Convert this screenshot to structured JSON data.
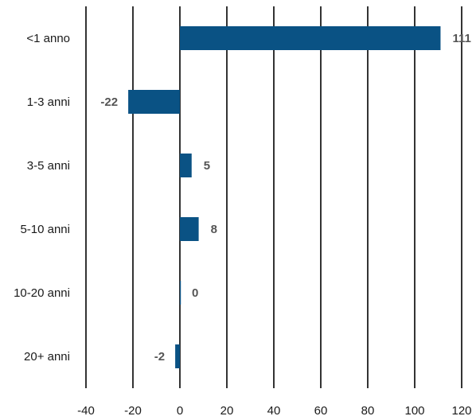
{
  "chart_data": {
    "type": "bar",
    "orientation": "horizontal",
    "title": "",
    "xlabel": "",
    "ylabel": "",
    "categories": [
      "<1 anno",
      "1-3 anni",
      "3-5 anni",
      "5-10 anni",
      "10-20 anni",
      "20+ anni"
    ],
    "values": [
      111,
      -22,
      5,
      8,
      0,
      -2
    ],
    "data_labels": [
      "111",
      "-22",
      "5",
      "8",
      "0",
      "-2"
    ],
    "xlim": [
      -40,
      120
    ],
    "x_ticks": [
      -40,
      -20,
      0,
      20,
      40,
      60,
      80,
      100,
      120
    ],
    "x_tick_labels": [
      "-40",
      "-20",
      "0",
      "20",
      "40",
      "60",
      "80",
      "100",
      "120"
    ],
    "grid": "vertical",
    "legend": "none",
    "colors": {
      "bar": "#0a5284",
      "gridline": "#000000",
      "data_label": "#555555",
      "text": "#1a1a1a"
    }
  }
}
